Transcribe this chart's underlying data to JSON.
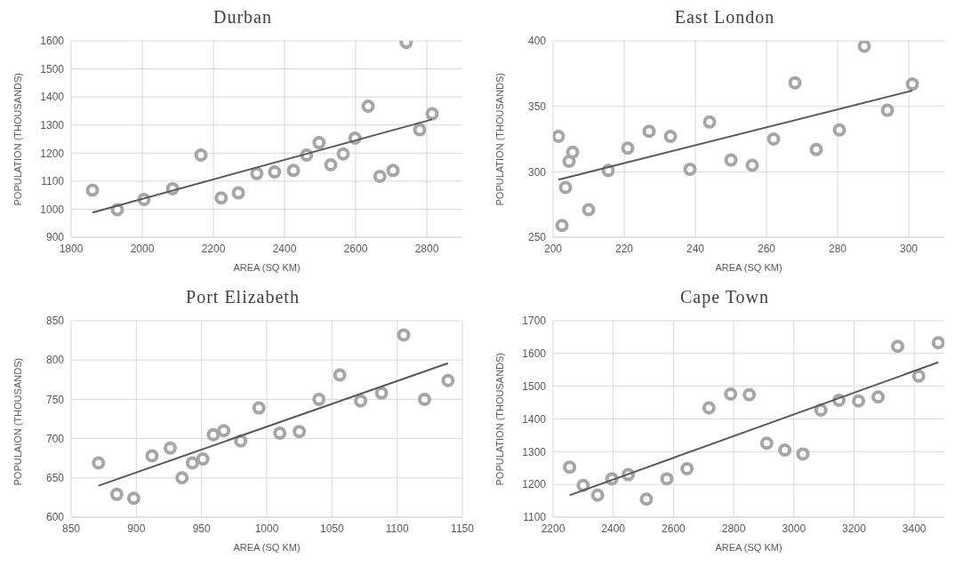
{
  "chart_data": [
    {
      "type": "scatter",
      "title": "Durban",
      "xlabel": "AREA (SQ KM)",
      "ylabel": "POPULATION (THOUSANDS)",
      "xlim": [
        1800,
        2900
      ],
      "xticks": [
        1800,
        2000,
        2200,
        2400,
        2600,
        2800
      ],
      "ylim": [
        900,
        1600
      ],
      "yticks": [
        900,
        1000,
        1100,
        1200,
        1300,
        1400,
        1500,
        1600
      ],
      "grid": true,
      "series": [
        {
          "color": "#a6a6a6",
          "marker": "circle",
          "x": [
            1860,
            1930,
            2005,
            2085,
            2165,
            2222,
            2270,
            2322,
            2372,
            2425,
            2462,
            2497,
            2530,
            2565,
            2598,
            2635,
            2668,
            2705,
            2742,
            2780,
            2815
          ],
          "values": [
            1068,
            998,
            1035,
            1073,
            1193,
            1040,
            1058,
            1127,
            1133,
            1138,
            1193,
            1237,
            1158,
            1197,
            1253,
            1367,
            1117,
            1138,
            1595,
            1283,
            1340
          ]
        },
        {
          "type": "line",
          "color": "#595959",
          "marker": "none",
          "x": [
            1860,
            2815
          ],
          "values": [
            988,
            1320
          ]
        }
      ]
    },
    {
      "type": "scatter",
      "title": "East London",
      "xlabel": "AREA (SQ KM)",
      "ylabel": "POPULATION (THOUSANDS)",
      "xlim": [
        200,
        310
      ],
      "xticks": [
        200,
        220,
        240,
        260,
        280,
        300
      ],
      "ylim": [
        250,
        400
      ],
      "yticks": [
        250,
        300,
        350,
        400
      ],
      "grid": true,
      "series": [
        {
          "color": "#a6a6a6",
          "marker": "circle",
          "x": [
            201.5,
            202.5,
            203.5,
            204.5,
            205.5,
            210,
            215.5,
            221,
            227,
            233,
            238.5,
            244,
            250,
            256,
            262,
            268,
            274,
            280.5,
            287.5,
            294,
            301
          ],
          "values": [
            327,
            259,
            288,
            308,
            315,
            271,
            301,
            318,
            331,
            327,
            302,
            338,
            309,
            305,
            325,
            368,
            317,
            332,
            396,
            347,
            367
          ]
        },
        {
          "type": "line",
          "color": "#595959",
          "marker": "none",
          "x": [
            201.5,
            301
          ],
          "values": [
            294,
            362
          ]
        }
      ]
    },
    {
      "type": "scatter",
      "title": "Port Elizabeth",
      "xlabel": "AREA (SQ KM)",
      "ylabel": "POPULAION (THOUSANDS)",
      "xlim": [
        850,
        1150
      ],
      "xticks": [
        850,
        900,
        950,
        1000,
        1050,
        1100,
        1150
      ],
      "ylim": [
        600,
        850
      ],
      "yticks": [
        600,
        650,
        700,
        750,
        800,
        850
      ],
      "grid": true,
      "series": [
        {
          "color": "#a6a6a6",
          "marker": "circle",
          "x": [
            871,
            885,
            898,
            912,
            926,
            935,
            943,
            951,
            959,
            967,
            980,
            994,
            1010,
            1025,
            1040,
            1056,
            1072,
            1088,
            1105,
            1121,
            1139
          ],
          "values": [
            669,
            629,
            624,
            678,
            688,
            650,
            669,
            674,
            705,
            710,
            697,
            739,
            707,
            709,
            750,
            781,
            748,
            758,
            832,
            750,
            774
          ]
        },
        {
          "type": "line",
          "color": "#595959",
          "marker": "none",
          "x": [
            871,
            1139
          ],
          "values": [
            640,
            796
          ]
        }
      ]
    },
    {
      "type": "scatter",
      "title": "Cape Town",
      "xlabel": "AREA (SQ KM)",
      "ylabel": "POPULATION (THOUSANDS)",
      "xlim": [
        2200,
        3500
      ],
      "xticks": [
        2200,
        2400,
        2600,
        2800,
        3000,
        3200,
        3400
      ],
      "ylim": [
        1100,
        1700
      ],
      "yticks": [
        1100,
        1200,
        1300,
        1400,
        1500,
        1600,
        1700
      ],
      "grid": true,
      "series": [
        {
          "color": "#a6a6a6",
          "marker": "circle",
          "x": [
            2255,
            2300,
            2348,
            2395,
            2450,
            2510,
            2578,
            2645,
            2718,
            2790,
            2852,
            2910,
            2970,
            3030,
            3090,
            3150,
            3215,
            3280,
            3345,
            3415,
            3480
          ],
          "values": [
            1253,
            1197,
            1167,
            1217,
            1230,
            1155,
            1217,
            1248,
            1434,
            1476,
            1474,
            1326,
            1305,
            1293,
            1427,
            1457,
            1455,
            1467,
            1622,
            1531,
            1633
          ]
        },
        {
          "type": "line",
          "color": "#595959",
          "marker": "none",
          "x": [
            2255,
            3480
          ],
          "values": [
            1167,
            1573
          ]
        }
      ]
    }
  ]
}
